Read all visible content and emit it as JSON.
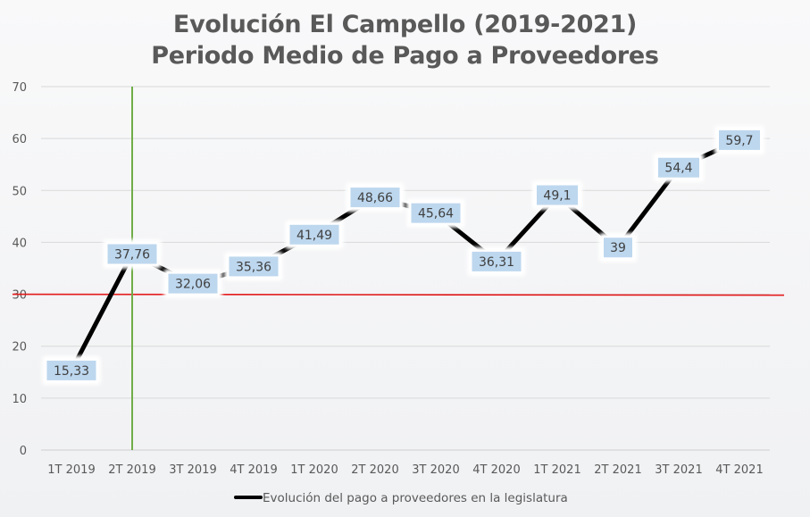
{
  "chart_data": {
    "type": "line",
    "title_line1": "Evolución El Campello (2019-2021)",
    "title_line2": "Periodo Medio de Pago a Proveedores",
    "categories": [
      "1T 2019",
      "2T 2019",
      "3T 2019",
      "4T 2019",
      "1T 2020",
      "2T 2020",
      "3T 2020",
      "4T 2020",
      "1T 2021",
      "2T 2021",
      "3T 2021",
      "4T 2021"
    ],
    "series": [
      {
        "name": "Evolución del pago a proveedores en la legislatura",
        "values": [
          15.33,
          37.76,
          32.06,
          35.36,
          41.49,
          48.66,
          45.64,
          36.31,
          49.1,
          39,
          54.4,
          59.7
        ],
        "labels": [
          "15,33",
          "37,76",
          "32,06",
          "35,36",
          "41,49",
          "48,66",
          "45,64",
          "36,31",
          "49,1",
          "39",
          "54,4",
          "59,7"
        ],
        "color": "#000000"
      }
    ],
    "ylim": [
      0,
      70
    ],
    "yticks": [
      0,
      10,
      20,
      30,
      40,
      50,
      60,
      70
    ],
    "grid": true,
    "legend_position": "bottom",
    "reference_line_y": 30,
    "reference_line_color": "#e31a1c",
    "vertical_marker_category": "2T 2019",
    "vertical_marker_color": "#70ad47",
    "label_box_color": "#bdd7ee"
  }
}
